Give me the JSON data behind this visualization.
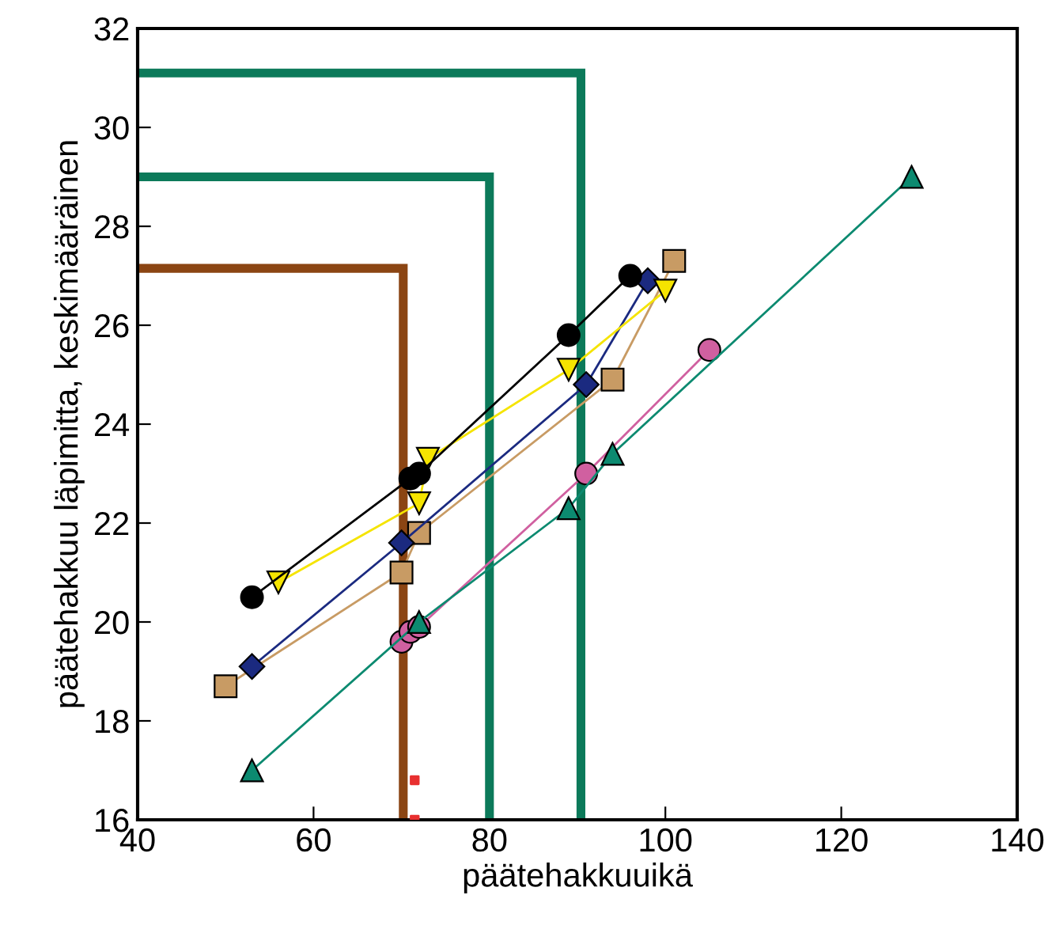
{
  "chart_data": {
    "type": "line",
    "xlabel": "päätehakkuuikä",
    "ylabel": "päätehakkuu läpimitta, keskimääräinen",
    "xlim": [
      40,
      140
    ],
    "xticks": [
      40,
      60,
      80,
      100,
      120,
      140
    ],
    "ylim": [
      16,
      32
    ],
    "yticks": [
      16,
      18,
      20,
      22,
      24,
      26,
      28,
      30,
      32
    ],
    "grid": false,
    "legend": false,
    "series": [
      {
        "color": "#000000",
        "marker": "circle",
        "x": [
          53,
          71,
          72,
          89,
          96
        ],
        "values": [
          20.5,
          22.9,
          23.0,
          25.8,
          27.0
        ]
      },
      {
        "color": "#f5e400",
        "marker": "triangle_down",
        "x": [
          56,
          72,
          73,
          89,
          100
        ],
        "values": [
          20.8,
          22.4,
          23.3,
          25.1,
          26.7
        ]
      },
      {
        "color": "#1b2a80",
        "marker": "diamond",
        "x": [
          53,
          70,
          91,
          98
        ],
        "values": [
          19.1,
          21.6,
          24.8,
          26.9
        ]
      },
      {
        "color": "#c89b64",
        "marker": "square",
        "x": [
          50,
          70,
          72,
          94,
          101
        ],
        "values": [
          18.7,
          21.0,
          21.8,
          24.9,
          27.3
        ]
      },
      {
        "color": "#0c8a70",
        "marker": "triangle",
        "x": [
          53,
          72,
          89,
          94,
          128
        ],
        "values": [
          17.0,
          20.0,
          22.3,
          23.4,
          29.0
        ]
      },
      {
        "color": "#d060a0",
        "marker": "circle",
        "x": [
          70,
          71,
          72,
          91,
          105
        ],
        "values": [
          19.6,
          19.8,
          19.9,
          23.0,
          25.5
        ]
      },
      {
        "type": "scatter",
        "color": "#e83030",
        "marker": "square",
        "x": [
          71.5,
          71.5
        ],
        "values": [
          16.0,
          16.8
        ]
      },
      {
        "color": "#8b4513",
        "marker": "none",
        "x": [
          40,
          70.2,
          70.2
        ],
        "values": [
          27.15,
          27.15,
          16
        ]
      },
      {
        "color": "#0c7a5a",
        "marker": "none",
        "x": [
          40,
          80,
          80
        ],
        "values": [
          29.0,
          29.0,
          16
        ]
      },
      {
        "color": "#0c7a5a",
        "marker": "none",
        "x": [
          40,
          90.4,
          90.4
        ],
        "values": [
          31.1,
          31.1,
          16
        ]
      }
    ]
  }
}
